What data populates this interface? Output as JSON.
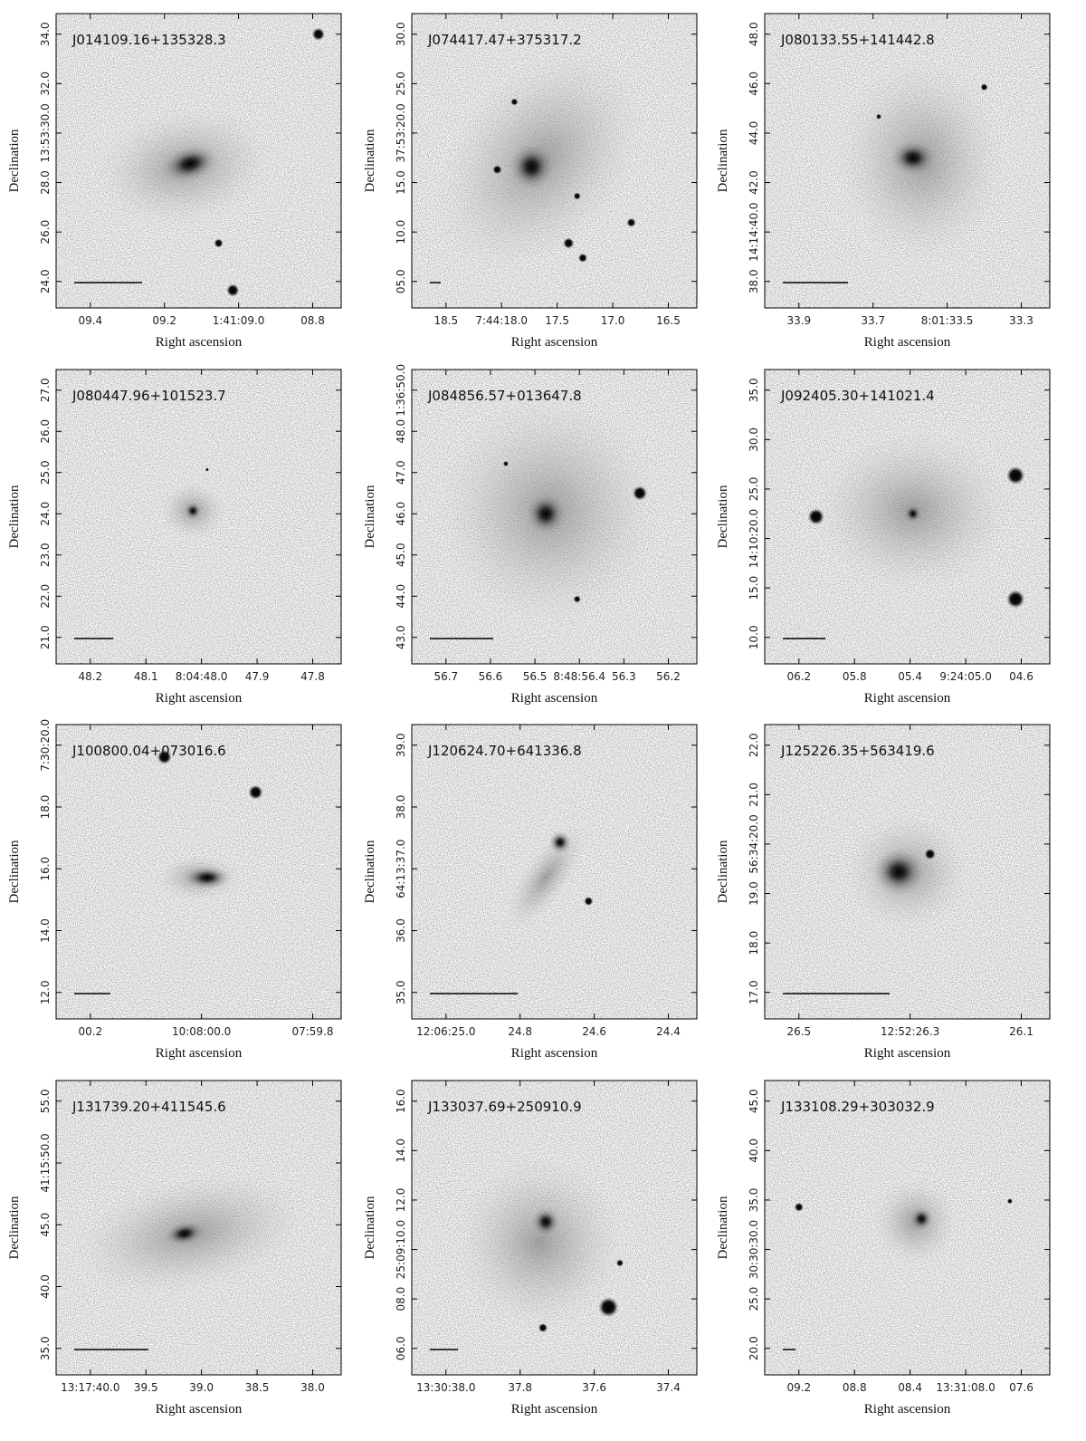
{
  "panels": [
    {
      "name": "J014109.16+135328.3",
      "xlabel": "Right ascension",
      "ylabel": "Declination",
      "xticks": [
        "09.4",
        "09.2",
        "1:41:09.0",
        "08.8"
      ],
      "yticks": [
        "24.0",
        "26.0",
        "28.0",
        "13:53:30.0",
        "32.0",
        "34.0"
      ]
    },
    {
      "name": "J074417.47+375317.2",
      "xlabel": "Right ascension",
      "ylabel": "Declination",
      "xticks": [
        "18.5",
        "7:44:18.0",
        "17.5",
        "17.0",
        "16.5"
      ],
      "yticks": [
        "05.0",
        "10.0",
        "15.0",
        "37:53:20.0",
        "25.0",
        "30.0"
      ]
    },
    {
      "name": "J080133.55+141442.8",
      "xlabel": "Right ascension",
      "ylabel": "Declination",
      "xticks": [
        "33.9",
        "33.7",
        "8:01:33.5",
        "33.3"
      ],
      "yticks": [
        "38.0",
        "14:14:40.0",
        "42.0",
        "44.0",
        "46.0",
        "48.0"
      ]
    },
    {
      "name": "J080447.96+101523.7",
      "xlabel": "Right ascension",
      "ylabel": "Declination",
      "xticks": [
        "48.2",
        "48.1",
        "8:04:48.0",
        "47.9",
        "47.8"
      ],
      "yticks": [
        "21.0",
        "22.0",
        "23.0",
        "24.0",
        "25.0",
        "26.0",
        "27.0"
      ]
    },
    {
      "name": "J084856.57+013647.8",
      "xlabel": "Right ascension",
      "ylabel": "Declination",
      "xticks": [
        "56.7",
        "56.6",
        "56.5",
        "8:48:56.4",
        "56.3",
        "56.2"
      ],
      "yticks": [
        "43.0",
        "44.0",
        "45.0",
        "46.0",
        "47.0",
        "48.0",
        "1:36:50.0"
      ]
    },
    {
      "name": "J092405.30+141021.4",
      "xlabel": "Right ascension",
      "ylabel": "Declination",
      "xticks": [
        "06.2",
        "05.8",
        "05.4",
        "9:24:05.0",
        "04.6"
      ],
      "yticks": [
        "10.0",
        "15.0",
        "14:10:20.0",
        "25.0",
        "30.0",
        "35.0"
      ]
    },
    {
      "name": "J100800.04+073016.6",
      "xlabel": "Right ascension",
      "ylabel": "Declination",
      "xticks": [
        "00.2",
        "10:08:00.0",
        "07:59.8"
      ],
      "yticks": [
        "12.0",
        "14.0",
        "16.0",
        "18.0",
        "7:30:20.0"
      ]
    },
    {
      "name": "J120624.70+641336.8",
      "xlabel": "Right ascension",
      "ylabel": "Declination",
      "xticks": [
        "12:06:25.0",
        "24.8",
        "24.6",
        "24.4"
      ],
      "yticks": [
        "35.0",
        "36.0",
        "64:13:37.0",
        "38.0",
        "39.0"
      ]
    },
    {
      "name": "J125226.35+563419.6",
      "xlabel": "Right ascension",
      "ylabel": "Declination",
      "xticks": [
        "26.5",
        "12:52:26.3",
        "26.1"
      ],
      "yticks": [
        "17.0",
        "18.0",
        "19.0",
        "56:34:20.0",
        "21.0",
        "22.0"
      ]
    },
    {
      "name": "J131739.20+411545.6",
      "xlabel": "Right ascension",
      "ylabel": "Declination",
      "xticks": [
        "13:17:40.0",
        "39.5",
        "39.0",
        "38.5",
        "38.0"
      ],
      "yticks": [
        "35.0",
        "40.0",
        "45.0",
        "41:15:50.0",
        "55.0"
      ]
    },
    {
      "name": "J133037.69+250910.9",
      "xlabel": "Right ascension",
      "ylabel": "Declination",
      "xticks": [
        "13:30:38.0",
        "37.8",
        "37.6",
        "37.4"
      ],
      "yticks": [
        "06.0",
        "08.0",
        "25:09:10.0",
        "12.0",
        "14.0",
        "16.0"
      ]
    },
    {
      "name": "J133108.29+303032.9",
      "xlabel": "Right ascension",
      "ylabel": "Declination",
      "xticks": [
        "09.2",
        "08.8",
        "08.4",
        "13:31:08.0",
        "07.6"
      ],
      "yticks": [
        "20.0",
        "25.0",
        "30:30:30.0",
        "35.0",
        "40.0",
        "45.0"
      ]
    }
  ]
}
